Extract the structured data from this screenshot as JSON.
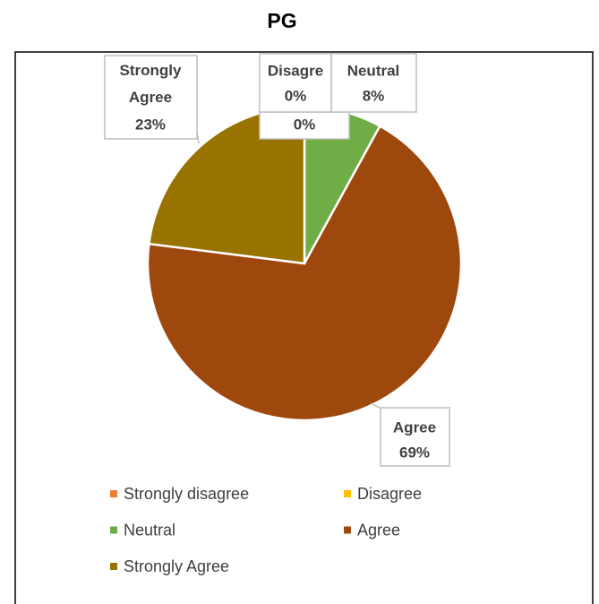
{
  "chart_data": {
    "type": "pie",
    "title": "PG",
    "categories": [
      "Strongly disagree",
      "Disagree",
      "Neutral",
      "Agree",
      "Strongly Agree"
    ],
    "values": [
      0,
      0,
      8,
      69,
      23
    ],
    "value_labels": [
      "0%",
      "0%",
      "8%",
      "69%",
      "23%"
    ],
    "label_names": [
      null,
      "Disagre",
      "Neutral",
      "Agree",
      "Strongly Agree"
    ],
    "colors": [
      "#ed7d31",
      "#ffc000",
      "#70ad47",
      "#9e480e",
      "#997300"
    ],
    "legend": "bottom"
  }
}
